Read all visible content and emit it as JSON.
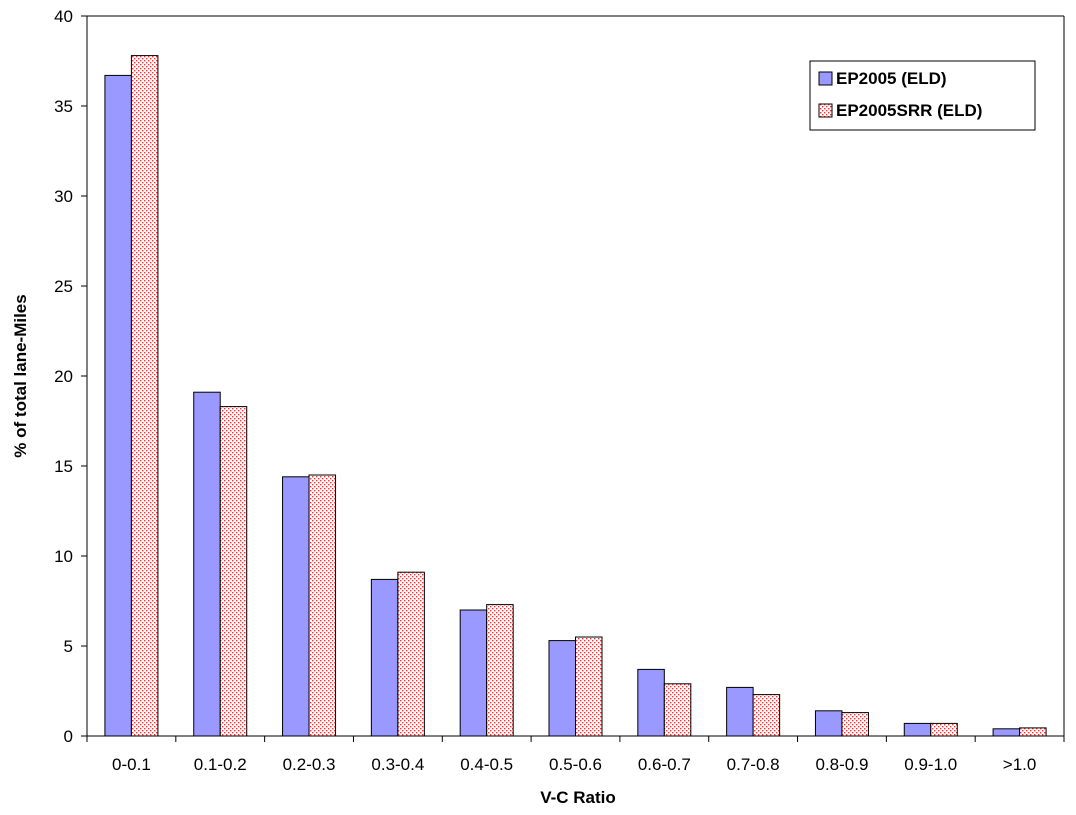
{
  "chart_data": {
    "type": "bar",
    "xlabel": "V-C Ratio",
    "ylabel": "% of total lane-Miles",
    "ylim": [
      0,
      40
    ],
    "yticks": [
      "0",
      "5",
      "10",
      "15",
      "20",
      "25",
      "30",
      "35",
      "40"
    ],
    "categories": [
      "0-0.1",
      "0.1-0.2",
      "0.2-0.3",
      "0.3-0.4",
      "0.4-0.5",
      "0.5-0.6",
      "0.6-0.7",
      "0.7-0.8",
      "0.8-0.9",
      "0.9-1.0",
      ">1.0"
    ],
    "series": [
      {
        "name": "EP2005 (ELD)",
        "color": "#9999ff",
        "pattern": "solid",
        "values": [
          36.7,
          19.1,
          14.4,
          8.7,
          7.0,
          5.3,
          3.7,
          2.7,
          1.4,
          0.7,
          0.4
        ]
      },
      {
        "name": "EP2005SRR (ELD)",
        "color": "#ff3333",
        "pattern": "dotted",
        "values": [
          37.8,
          18.3,
          14.5,
          9.1,
          7.3,
          5.5,
          2.9,
          2.3,
          1.3,
          0.7,
          0.45
        ]
      }
    ],
    "grid": false,
    "legend_position": "top-right"
  }
}
